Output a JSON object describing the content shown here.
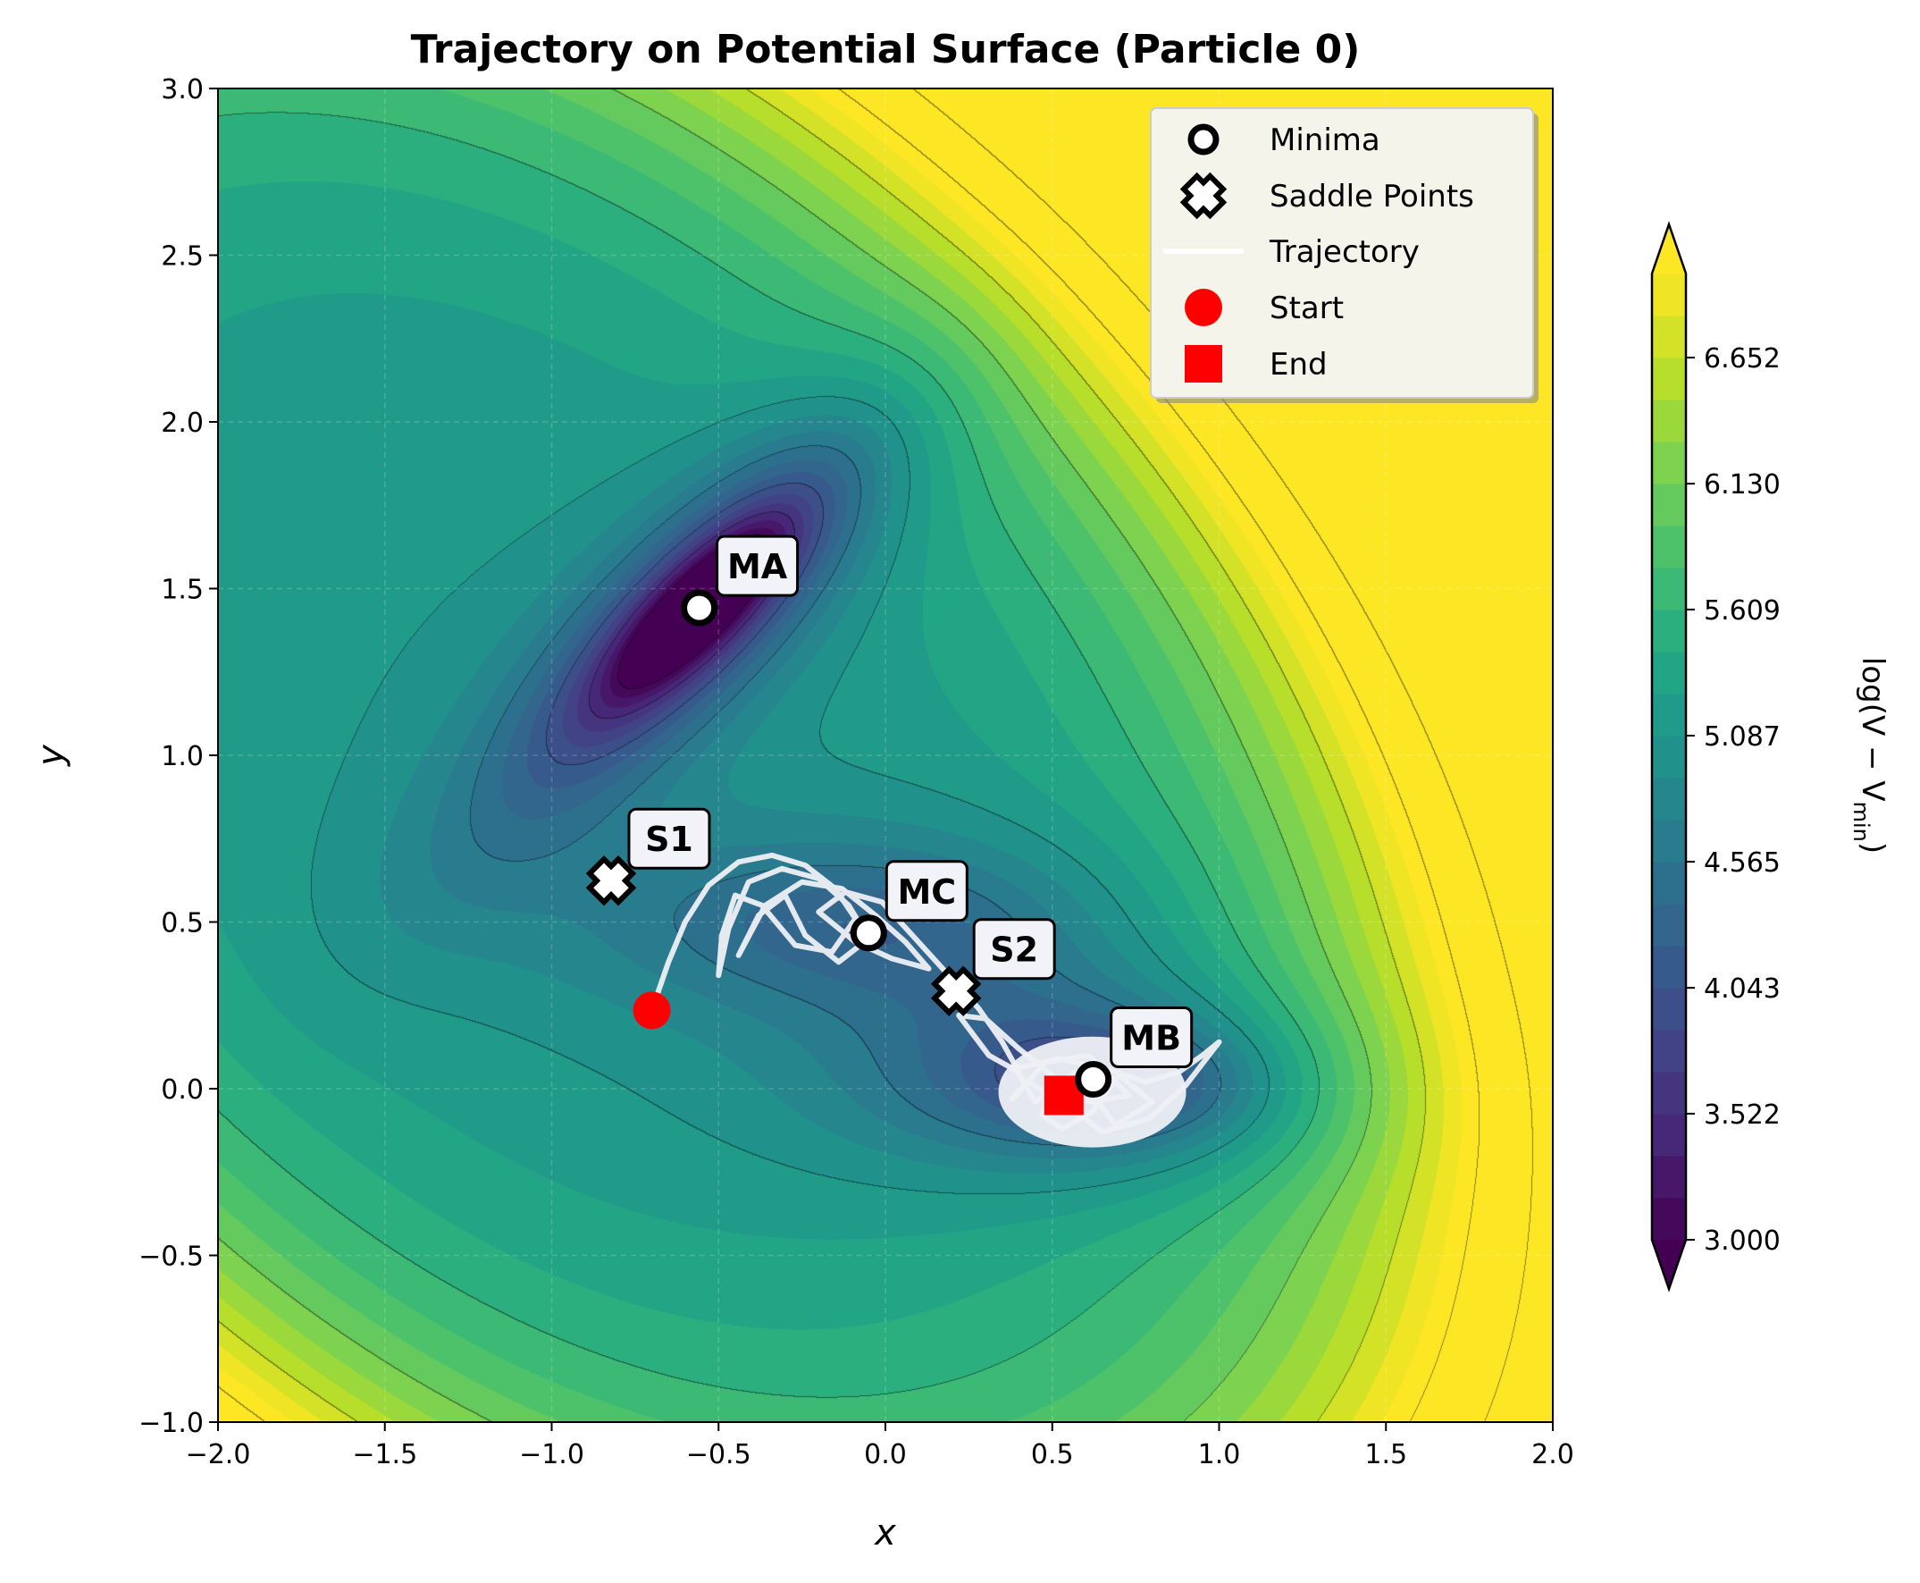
{
  "chart_data": {
    "type": "contour",
    "title": "Trajectory on Potential Surface (Particle 0)",
    "xlabel": "x",
    "ylabel": "y",
    "xlim": [
      -2.0,
      2.0
    ],
    "ylim": [
      -1.0,
      3.0
    ],
    "xticks": [
      "−2.0",
      "−1.5",
      "−1.0",
      "−0.5",
      "0.0",
      "0.5",
      "1.0",
      "1.5",
      "2.0"
    ],
    "yticks": [
      "−1.0",
      "−0.5",
      "0.0",
      "0.5",
      "1.0",
      "1.5",
      "2.0",
      "2.5",
      "3.0"
    ],
    "grid": true,
    "colormap": "viridis",
    "colorbar": {
      "label": "log(V − V",
      "label_sub": "min",
      "label_end": ")",
      "range": [
        3.0,
        7.0
      ],
      "levels": 24,
      "extend": "both",
      "ticks": [
        "3.000",
        "3.522",
        "4.043",
        "4.565",
        "5.087",
        "5.609",
        "6.130",
        "6.652"
      ]
    },
    "minima": [
      {
        "label": "MA",
        "x": -0.558,
        "y": 1.442
      },
      {
        "label": "MB",
        "x": 0.623,
        "y": 0.028
      },
      {
        "label": "MC",
        "x": -0.05,
        "y": 0.467
      }
    ],
    "saddle_points": [
      {
        "label": "S1",
        "x": -0.822,
        "y": 0.624
      },
      {
        "label": "S2",
        "x": 0.212,
        "y": 0.293
      }
    ],
    "start": {
      "x": -0.7,
      "y": 0.235
    },
    "end": {
      "x": 0.535,
      "y": -0.02
    },
    "trajectory": [
      [
        -0.7,
        0.235
      ],
      [
        -0.65,
        0.38
      ],
      [
        -0.6,
        0.5
      ],
      [
        -0.53,
        0.61
      ],
      [
        -0.44,
        0.68
      ],
      [
        -0.34,
        0.7
      ],
      [
        -0.24,
        0.67
      ],
      [
        -0.15,
        0.6
      ],
      [
        -0.09,
        0.51
      ],
      [
        -0.16,
        0.41
      ],
      [
        -0.27,
        0.43
      ],
      [
        -0.37,
        0.55
      ],
      [
        -0.45,
        0.58
      ],
      [
        -0.49,
        0.46
      ],
      [
        -0.5,
        0.34
      ],
      [
        -0.47,
        0.48
      ],
      [
        -0.41,
        0.62
      ],
      [
        -0.31,
        0.66
      ],
      [
        -0.2,
        0.63
      ],
      [
        -0.11,
        0.55
      ],
      [
        -0.05,
        0.45
      ],
      [
        -0.14,
        0.38
      ],
      [
        -0.24,
        0.46
      ],
      [
        -0.3,
        0.58
      ],
      [
        -0.38,
        0.52
      ],
      [
        -0.44,
        0.4
      ],
      [
        -0.36,
        0.55
      ],
      [
        -0.25,
        0.62
      ],
      [
        -0.13,
        0.6
      ],
      [
        -0.03,
        0.52
      ],
      [
        0.06,
        0.44
      ],
      [
        0.13,
        0.36
      ],
      [
        0.02,
        0.39
      ],
      [
        -0.09,
        0.44
      ],
      [
        -0.2,
        0.53
      ],
      [
        -0.12,
        0.59
      ],
      [
        -0.01,
        0.56
      ],
      [
        0.09,
        0.45
      ],
      [
        0.19,
        0.34
      ],
      [
        0.28,
        0.24
      ],
      [
        0.35,
        0.14
      ],
      [
        0.4,
        0.05
      ],
      [
        0.31,
        0.1
      ],
      [
        0.22,
        0.22
      ],
      [
        0.3,
        0.21
      ],
      [
        0.4,
        0.12
      ],
      [
        0.5,
        0.04
      ],
      [
        0.47,
        -0.08
      ],
      [
        0.53,
        -0.12
      ],
      [
        0.62,
        -0.07
      ],
      [
        0.7,
        0.04
      ],
      [
        0.8,
        -0.04
      ],
      [
        0.69,
        -0.11
      ],
      [
        0.57,
        0.05
      ],
      [
        0.45,
        -0.04
      ],
      [
        0.39,
        0.06
      ],
      [
        0.52,
        0.09
      ],
      [
        0.66,
        0.06
      ],
      [
        0.78,
        0.02
      ],
      [
        0.88,
        0.05
      ],
      [
        0.95,
        0.1
      ],
      [
        1.0,
        0.14
      ],
      [
        0.9,
        0.01
      ],
      [
        0.79,
        -0.09
      ],
      [
        0.65,
        -0.13
      ],
      [
        0.56,
        -0.06
      ],
      [
        0.43,
        0.02
      ],
      [
        0.38,
        -0.03
      ],
      [
        0.48,
        0.08
      ],
      [
        0.61,
        0.1
      ],
      [
        0.73,
        -0.02
      ],
      [
        0.62,
        -0.04
      ],
      [
        0.535,
        -0.02
      ]
    ],
    "legend": {
      "position": "top-right",
      "entries": [
        "Minima",
        "Saddle Points",
        "Trajectory",
        "Start",
        "End"
      ]
    }
  }
}
